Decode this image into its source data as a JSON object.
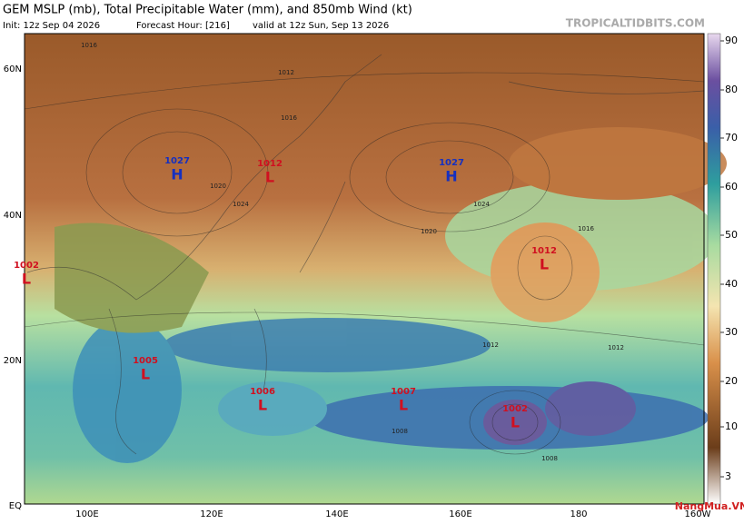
{
  "header": {
    "title": "GEM MSLP (mb), Total Precipitable Water (mm), and 850mb Wind (kt)",
    "init": "Init: 12z Sep 04 2026",
    "forecast_hour": "Forecast Hour: [216]",
    "valid": "valid at 12z Sun, Sep 13 2026",
    "site": "TROPICALTIDBITS.COM"
  },
  "axes": {
    "lat_labels": [
      "60N",
      "40N",
      "20N",
      "EQ"
    ],
    "lon_labels": [
      "100E",
      "120E",
      "140E",
      "160E",
      "180",
      "160W"
    ]
  },
  "colorbar": {
    "ticks": [
      90,
      80,
      70,
      60,
      50,
      40,
      30,
      20,
      10,
      3
    ]
  },
  "pressure_centers": [
    {
      "kind": "H",
      "value": "1027"
    },
    {
      "kind": "L",
      "value": "1012"
    },
    {
      "kind": "H",
      "value": "1027"
    },
    {
      "kind": "L",
      "value": "1002"
    },
    {
      "kind": "L",
      "value": "1012"
    },
    {
      "kind": "L",
      "value": "1005"
    },
    {
      "kind": "L",
      "value": "1006"
    },
    {
      "kind": "L",
      "value": "1007"
    },
    {
      "kind": "L",
      "value": "1002"
    }
  ],
  "isobar_labels": [
    "1016",
    "1012",
    "1020",
    "1024",
    "1016",
    "1020",
    "1024",
    "1012",
    "1008",
    "1008",
    "1016",
    "1012"
  ],
  "watermark": "NangMua.VN"
}
